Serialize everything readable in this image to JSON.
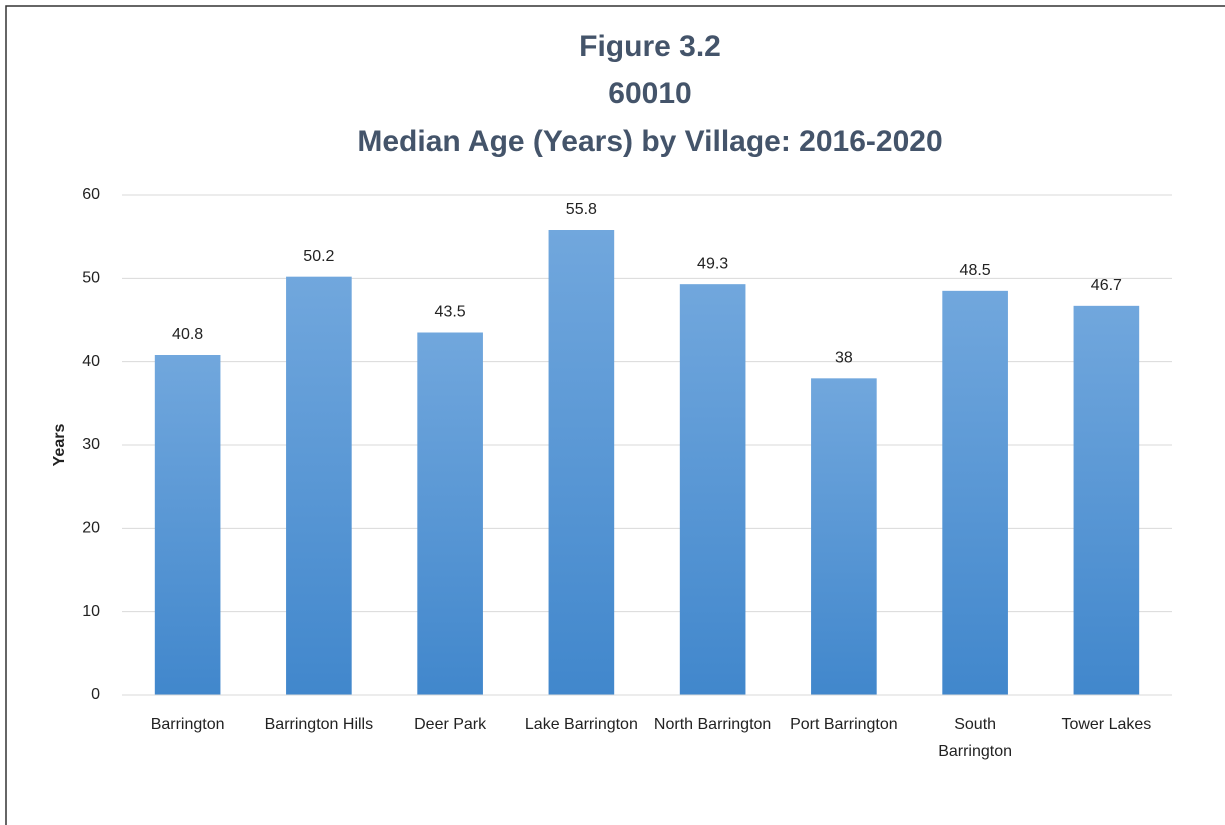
{
  "chart_data": {
    "type": "bar",
    "title": [
      "Figure 3.2",
      "60010",
      "Median Age (Years) by Village: 2016-2020"
    ],
    "y_label": "Years",
    "categories": [
      "Barrington",
      "Barrington Hills",
      "Deer Park",
      "Lake Barrington",
      "North Barrington",
      "Port Barrington",
      "South Barrington",
      "Tower Lakes"
    ],
    "values": [
      40.8,
      50.2,
      43.5,
      55.8,
      49.3,
      38,
      48.5,
      46.7
    ],
    "color": "#5b9bd5",
    "ylim": [
      0,
      60
    ],
    "yticks": [
      0,
      10,
      20,
      30,
      40,
      50,
      60
    ],
    "grid": true
  }
}
